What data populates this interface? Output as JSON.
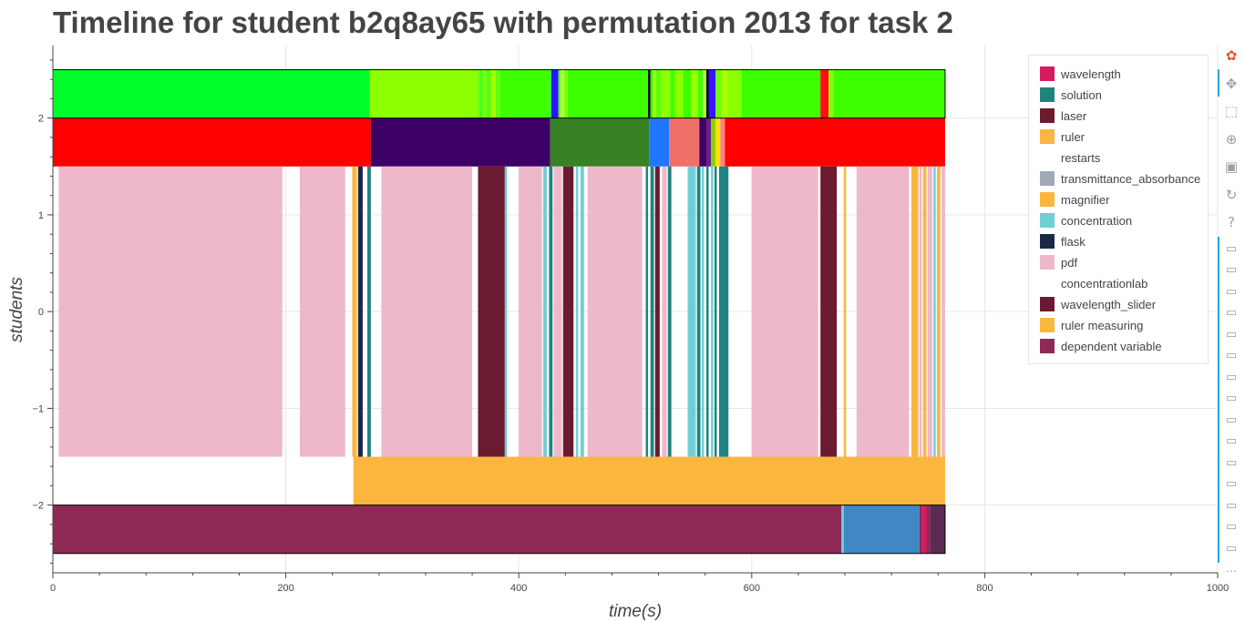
{
  "chart_data": {
    "type": "timeline",
    "title": "Timeline for student b2q8ay65 with permutation 2013 for task 2",
    "xlabel": "time(s)",
    "ylabel": "students",
    "xlim": [
      0,
      1000
    ],
    "ylim": [
      -2.7,
      2.75
    ],
    "xticks": [
      0,
      200,
      400,
      600,
      800,
      1000
    ],
    "yticks": [
      -2,
      -1,
      0,
      1,
      2
    ],
    "grid": true,
    "legend_position": "right",
    "legend": [
      {
        "label": "wavelength",
        "color": "#d81b60"
      },
      {
        "label": "solution",
        "color": "#1e847f"
      },
      {
        "label": "laser",
        "color": "#6b1b30"
      },
      {
        "label": "ruler",
        "color": "#fbb640"
      },
      {
        "label": "restarts",
        "color": "#ffffff"
      },
      {
        "label": "transmittance_absorbance",
        "color": "#a1a9b8"
      },
      {
        "label": "magnifier",
        "color": "#fbb640"
      },
      {
        "label": "concentration",
        "color": "#6fcfd8"
      },
      {
        "label": "flask",
        "color": "#1b2a44"
      },
      {
        "label": "pdf",
        "color": "#eeb8cb"
      },
      {
        "label": "concentrationlab",
        "color": "#ffffff"
      },
      {
        "label": "wavelength_slider",
        "color": "#6b1b30"
      },
      {
        "label": "ruler measuring",
        "color": "#fbb640"
      },
      {
        "label": "dependent variable",
        "color": "#8e2a55"
      }
    ],
    "rows": [
      {
        "y_range": [
          2,
          2.5
        ],
        "segments": [
          [
            0,
            272,
            "#00ff2a"
          ],
          [
            272,
            364,
            "#8cff00"
          ],
          [
            364,
            366,
            "#6fff0c"
          ],
          [
            366,
            369,
            "#45ff1c"
          ],
          [
            369,
            372,
            "#7dff08"
          ],
          [
            372,
            376,
            "#55ff14"
          ],
          [
            376,
            380,
            "#a5ff00"
          ],
          [
            380,
            384,
            "#60ff10"
          ],
          [
            384,
            427,
            "#3dff00"
          ],
          [
            427,
            428,
            "#00ff60"
          ],
          [
            428,
            434,
            "#2a14ff"
          ],
          [
            434,
            436,
            "#55ff14"
          ],
          [
            436,
            439,
            "#b8ff40"
          ],
          [
            439,
            442,
            "#7dff08"
          ],
          [
            442,
            511,
            "#3dff00"
          ],
          [
            511,
            513,
            "#000000"
          ],
          [
            513,
            515,
            "#2aff14"
          ],
          [
            515,
            518,
            "#9cff00"
          ],
          [
            518,
            522,
            "#5aff0c"
          ],
          [
            522,
            530,
            "#8cff00"
          ],
          [
            530,
            534,
            "#3dff00"
          ],
          [
            534,
            541,
            "#8cff00"
          ],
          [
            541,
            548,
            "#3dff00"
          ],
          [
            548,
            554,
            "#9cff00"
          ],
          [
            554,
            558,
            "#3dff00"
          ],
          [
            558,
            561,
            "#b8ff40"
          ],
          [
            561,
            563,
            "#000000"
          ],
          [
            563,
            569,
            "#3a14ff"
          ],
          [
            569,
            574,
            "#6fff0c"
          ],
          [
            574,
            579,
            "#a5ff00"
          ],
          [
            579,
            591,
            "#8cff00"
          ],
          [
            591,
            659,
            "#3dff00"
          ],
          [
            659,
            666,
            "#ff1010"
          ],
          [
            666,
            670,
            "#7dff08"
          ],
          [
            670,
            766,
            "#3dff00"
          ]
        ]
      },
      {
        "y_range": [
          1.5,
          2
        ],
        "segments": [
          [
            0,
            273,
            "#ff0000"
          ],
          [
            273,
            427,
            "#3d0066"
          ],
          [
            427,
            512,
            "#378224"
          ],
          [
            512,
            529,
            "#2176ff"
          ],
          [
            529,
            555,
            "#ef706a"
          ],
          [
            555,
            561,
            "#3d0066"
          ],
          [
            561,
            565,
            "#6a1e8a"
          ],
          [
            565,
            569,
            "#8cd000"
          ],
          [
            569,
            573,
            "#ffe000"
          ],
          [
            573,
            577,
            "#ff8080"
          ],
          [
            577,
            766,
            "#ff0000"
          ]
        ]
      },
      {
        "y_range": [
          -1.5,
          1.5
        ],
        "segments": [
          [
            5,
            197,
            "#eeb8cb"
          ],
          [
            212,
            251,
            "#eeb8cb"
          ],
          [
            257,
            261,
            "#fbb640"
          ],
          [
            262,
            266,
            "#1b2a44"
          ],
          [
            270,
            273,
            "#1e847f"
          ],
          [
            282,
            360,
            "#eeb8cb"
          ],
          [
            365,
            388,
            "#6b1b30"
          ],
          [
            388,
            390,
            "#6fcfd8"
          ],
          [
            400,
            420,
            "#eeb8cb"
          ],
          [
            421,
            424,
            "#6fcfd8"
          ],
          [
            426,
            429,
            "#1e847f"
          ],
          [
            430,
            437,
            "#eeb8cb"
          ],
          [
            438,
            447,
            "#6b1b30"
          ],
          [
            449,
            451,
            "#6fcfd8"
          ],
          [
            453,
            456,
            "#6fcfd8"
          ],
          [
            459,
            506,
            "#eeb8cb"
          ],
          [
            509,
            511,
            "#1e847f"
          ],
          [
            513,
            516,
            "#1e847f"
          ],
          [
            517,
            521,
            "#6b1b30"
          ],
          [
            523,
            527,
            "#eeb8cb"
          ],
          [
            528,
            531,
            "#1e847f"
          ],
          [
            545,
            552,
            "#6fcfd8"
          ],
          [
            553,
            556,
            "#1e847f"
          ],
          [
            557,
            559,
            "#6fcfd8"
          ],
          [
            561,
            563,
            "#1e847f"
          ],
          [
            565,
            567,
            "#6fcfd8"
          ],
          [
            568,
            570,
            "#1e847f"
          ],
          [
            572,
            580,
            "#1e847f"
          ],
          [
            600,
            657,
            "#eeb8cb"
          ],
          [
            659,
            673,
            "#6b1b30"
          ],
          [
            679,
            681,
            "#fbb640"
          ],
          [
            690,
            735,
            "#eeb8cb"
          ],
          [
            737,
            743,
            "#fbb640"
          ],
          [
            744,
            746,
            "#eeb8cb"
          ],
          [
            747,
            750,
            "#fbb640"
          ],
          [
            751,
            755,
            "#eeb8cb"
          ],
          [
            756,
            758,
            "#6fcfd8"
          ],
          [
            759,
            762,
            "#fbb640"
          ],
          [
            763,
            766,
            "#eeb8cb"
          ]
        ]
      },
      {
        "y_range": [
          -2,
          -1.5
        ],
        "segments": [
          [
            258,
            766,
            "#fbb640"
          ]
        ]
      },
      {
        "y_range": [
          -2.5,
          -2
        ],
        "segments": [
          [
            0,
            677,
            "#8e2a55"
          ],
          [
            677,
            679,
            "#6fcfd8"
          ],
          [
            679,
            744,
            "#3f88c5"
          ],
          [
            744,
            746,
            "#8e2a55"
          ],
          [
            746,
            750,
            "#d81b60"
          ],
          [
            750,
            753,
            "#8e2a55"
          ],
          [
            753,
            766,
            "#5b2a55"
          ]
        ]
      }
    ],
    "outlines": [
      {
        "x_range": [
          0,
          766
        ],
        "y_range": [
          2,
          2.5
        ]
      },
      {
        "x_range": [
          0,
          766
        ],
        "y_range": [
          -2.5,
          -2
        ]
      }
    ]
  },
  "toolbar": {
    "tools": [
      {
        "name": "logo-icon",
        "glyph": "✿"
      },
      {
        "name": "pan-icon",
        "glyph": "✥"
      },
      {
        "name": "box-zoom-icon",
        "glyph": "⬚"
      },
      {
        "name": "wheel-zoom-icon",
        "glyph": "⊕"
      },
      {
        "name": "save-icon",
        "glyph": "▣"
      },
      {
        "name": "reset-icon",
        "glyph": "↻"
      },
      {
        "name": "help-icon",
        "glyph": "?"
      }
    ],
    "hover_tool_count": 15,
    "hover_glyph": "▭",
    "more_glyph": "⋯",
    "accent_color": "#2ba4e0"
  }
}
